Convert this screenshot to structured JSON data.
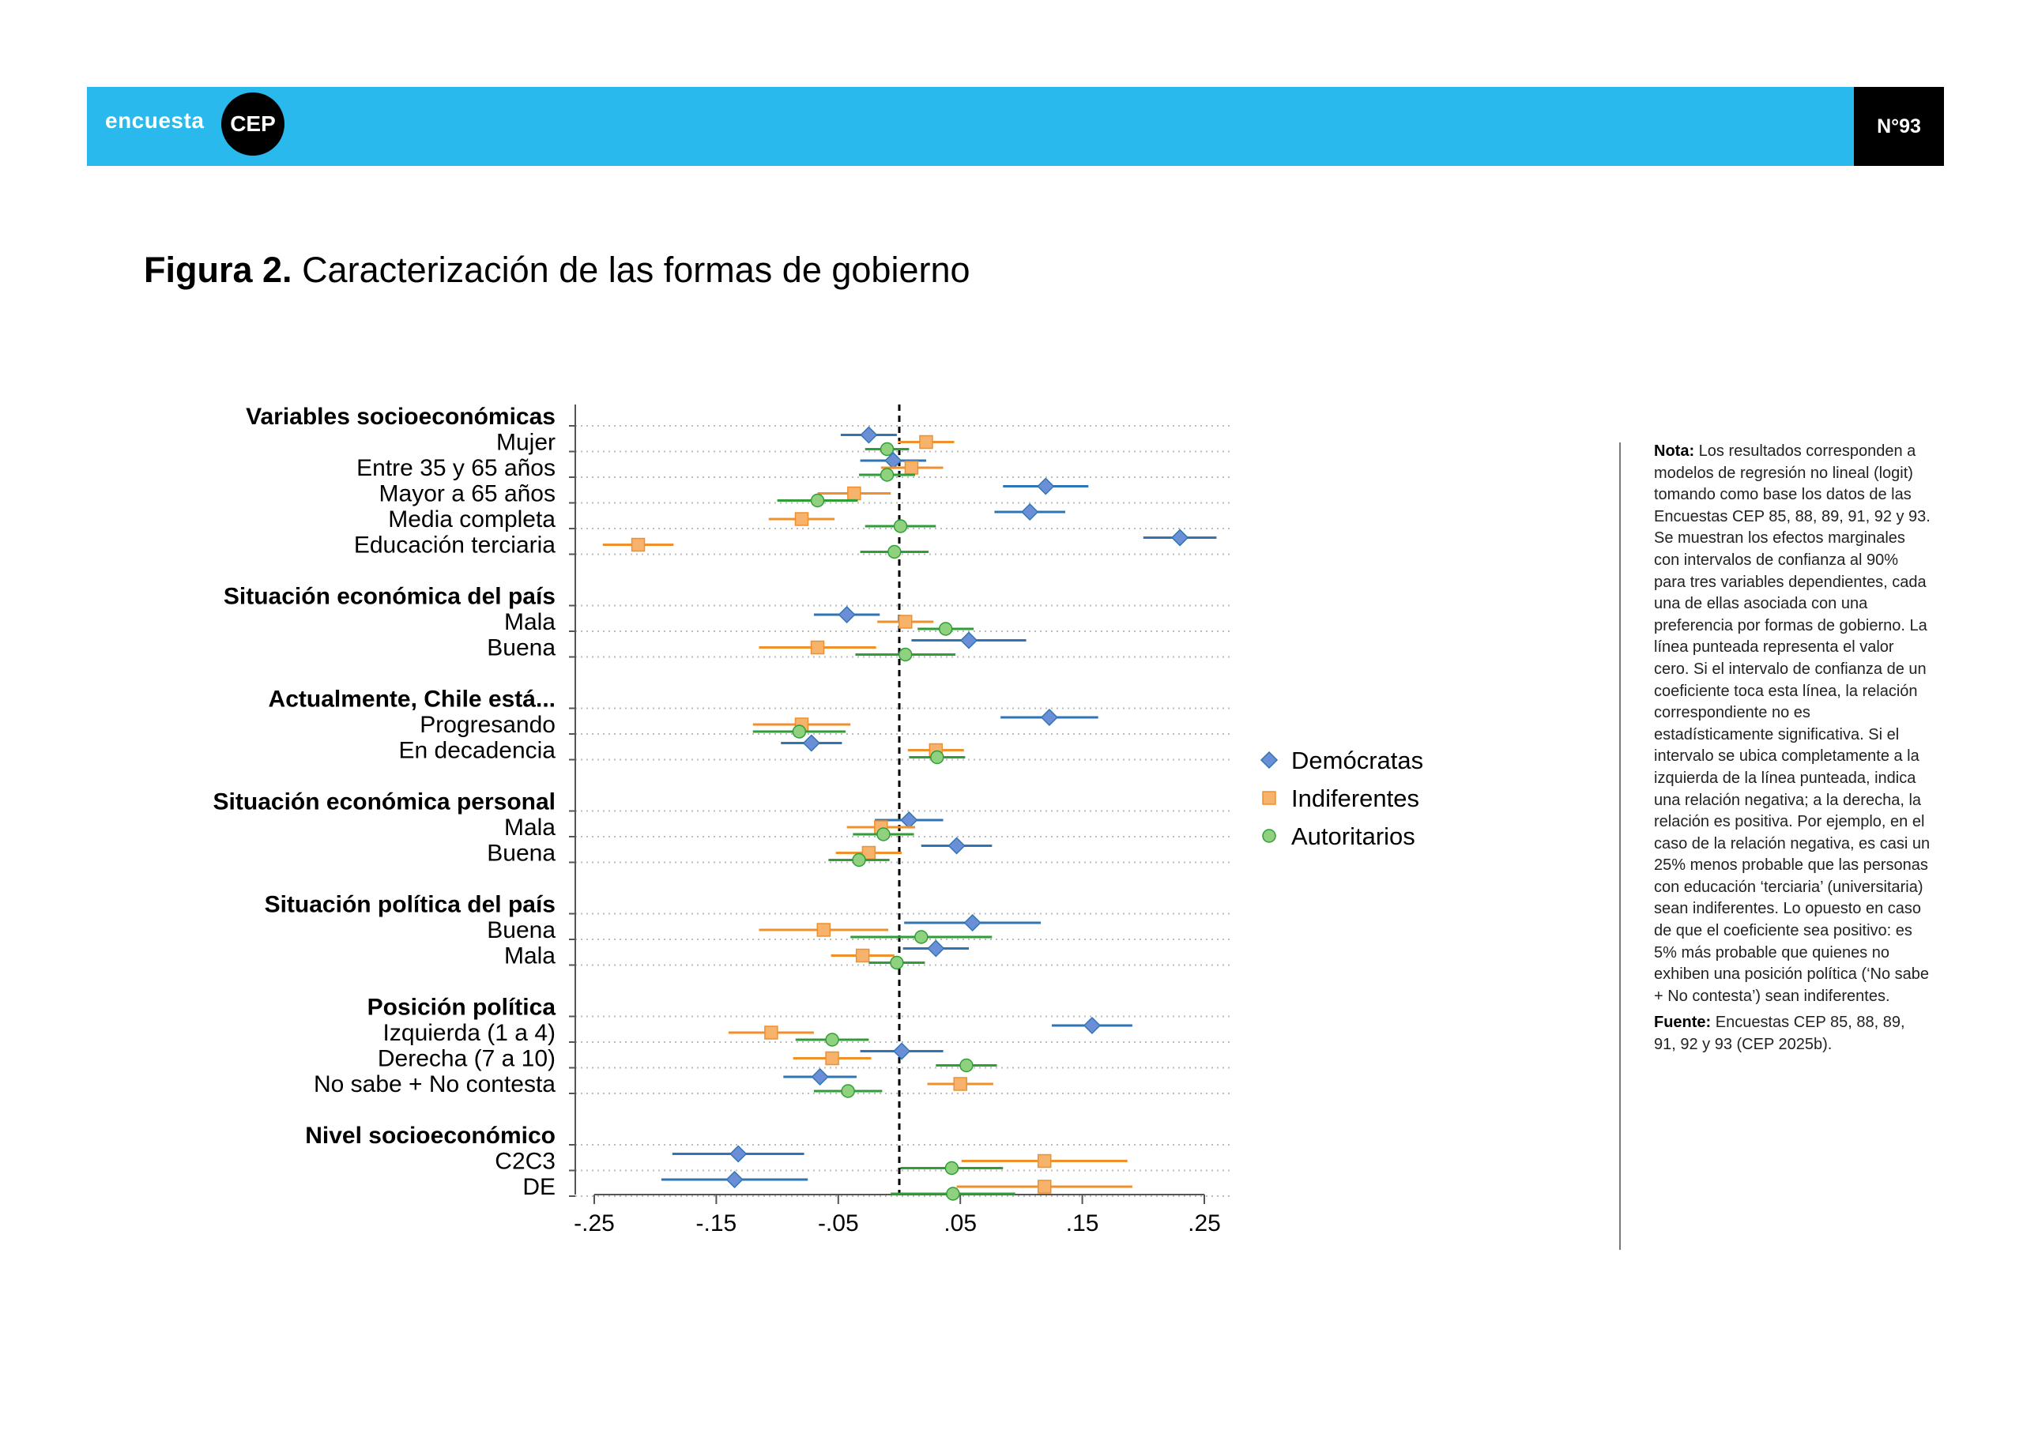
{
  "header": {
    "logo_word": "encuesta",
    "logo_badge": "CEP",
    "issue": "N°93",
    "colors": {
      "band": "#29b9ec",
      "badge": "#000000"
    }
  },
  "figure": {
    "label": "Figura 2.",
    "title": "Caracterización de las formas de gobierno"
  },
  "note": {
    "label": "Nota:",
    "text": "Los resultados corresponden a modelos de regresión no lineal (logit) tomando como base los datos de las Encuestas CEP 85, 88, 89, 91, 92 y 93. Se muestran los efectos marginales con intervalos de confianza al 90% para tres variables dependientes, cada una de ellas asociada con una preferencia por formas de gobierno. La línea punteada representa el valor cero. Si el intervalo de confianza de un coeficiente toca esta línea, la relación correspondiente no es estadísticamente significativa. Si el intervalo se ubica completamente a la izquierda de la línea punteada, indica una relación negativa; a la derecha, la relación es positiva. Por ejemplo, en el caso de la relación negativa, es casi un 25% menos probable que las personas con educación ‘terciaria’ (universitaria) sean indiferentes. Lo opuesto en caso de que el coeficiente sea positivo: es 5% más probable que quienes no exhiben una posición política (‘No sabe + No contesta’) sean indiferentes.",
    "source_label": "Fuente:",
    "source_text": "Encuestas CEP 85, 88, 89, 91, 92 y 93 (CEP 2025b)."
  },
  "chart_data": {
    "type": "scatter",
    "subtype": "coefficient-plot",
    "orientation": "horizontal",
    "xlim": [
      -0.26,
      0.26
    ],
    "x_ticks": [
      -0.25,
      -0.15,
      -0.05,
      0.05,
      0.15,
      0.25
    ],
    "x_tick_labels": [
      "-.25",
      "-.15",
      "-.05",
      ".05",
      ".15",
      ".25"
    ],
    "reference_line": {
      "x": 0,
      "style": "dashed"
    },
    "grid": "dotted horizontal",
    "legend_position": "right",
    "series": [
      {
        "name": "Demócratas",
        "color": "#6b8fd6",
        "line_color": "#2f75b5",
        "marker": "diamond"
      },
      {
        "name": "Indiferentes",
        "color": "#f7b26b",
        "line_color": "#f0902c",
        "marker": "square"
      },
      {
        "name": "Autoritarios",
        "color": "#8fd17f",
        "line_color": "#2f9e37",
        "marker": "circle"
      }
    ],
    "groups": [
      {
        "header": "Variables socioeconómicas",
        "rows": [
          {
            "label": "Mujer",
            "points": [
              [
                -0.025,
                -0.048,
                -0.002
              ],
              [
                0.022,
                -0.001,
                0.045
              ],
              [
                -0.01,
                -0.028,
                0.008
              ]
            ]
          },
          {
            "label": "Entre 35 y 65 años",
            "points": [
              [
                -0.005,
                -0.032,
                0.022
              ],
              [
                0.01,
                -0.015,
                0.036
              ],
              [
                -0.01,
                -0.033,
                0.013
              ]
            ]
          },
          {
            "label": "Mayor a 65 años",
            "points": [
              [
                0.12,
                0.085,
                0.155
              ],
              [
                -0.037,
                -0.067,
                -0.007
              ],
              [
                -0.067,
                -0.1,
                -0.034
              ]
            ]
          },
          {
            "label": "Media completa",
            "points": [
              [
                0.107,
                0.078,
                0.136
              ],
              [
                -0.08,
                -0.107,
                -0.053
              ],
              [
                0.001,
                -0.028,
                0.03
              ]
            ]
          },
          {
            "label": "Educación terciaria",
            "points": [
              [
                0.23,
                0.2,
                0.26
              ],
              [
                -0.214,
                -0.243,
                -0.185
              ],
              [
                -0.004,
                -0.032,
                0.024
              ]
            ]
          }
        ]
      },
      {
        "header": "Situación económica del país",
        "rows": [
          {
            "label": "Mala",
            "points": [
              [
                -0.043,
                -0.07,
                -0.016
              ],
              [
                0.005,
                -0.018,
                0.028
              ],
              [
                0.038,
                0.015,
                0.061
              ]
            ]
          },
          {
            "label": "Buena",
            "points": [
              [
                0.057,
                0.01,
                0.104
              ],
              [
                -0.067,
                -0.115,
                -0.019
              ],
              [
                0.005,
                -0.036,
                0.046
              ]
            ]
          }
        ]
      },
      {
        "header": "Actualmente, Chile está...",
        "rows": [
          {
            "label": "Progresando",
            "points": [
              [
                0.123,
                0.083,
                0.163
              ],
              [
                -0.08,
                -0.12,
                -0.04
              ],
              [
                -0.082,
                -0.12,
                -0.044
              ]
            ]
          },
          {
            "label": "En decadencia",
            "points": [
              [
                -0.072,
                -0.097,
                -0.047
              ],
              [
                0.03,
                0.007,
                0.053
              ],
              [
                0.031,
                0.008,
                0.054
              ]
            ]
          }
        ]
      },
      {
        "header": "Situación económica personal",
        "rows": [
          {
            "label": "Mala",
            "points": [
              [
                0.008,
                -0.02,
                0.036
              ],
              [
                -0.015,
                -0.043,
                0.013
              ],
              [
                -0.013,
                -0.038,
                0.012
              ]
            ]
          },
          {
            "label": "Buena",
            "points": [
              [
                0.047,
                0.018,
                0.076
              ],
              [
                -0.025,
                -0.052,
                0.002
              ],
              [
                -0.033,
                -0.058,
                -0.008
              ]
            ]
          }
        ]
      },
      {
        "header": "Situación política del país",
        "rows": [
          {
            "label": "Buena",
            "points": [
              [
                0.06,
                0.004,
                0.116
              ],
              [
                -0.062,
                -0.115,
                -0.009
              ],
              [
                0.018,
                -0.04,
                0.076
              ]
            ]
          },
          {
            "label": "Mala",
            "points": [
              [
                0.03,
                0.003,
                0.057
              ],
              [
                -0.03,
                -0.056,
                -0.004
              ],
              [
                -0.002,
                -0.025,
                0.021
              ]
            ]
          }
        ]
      },
      {
        "header": "Posición política",
        "rows": [
          {
            "label": "Izquierda (1 a 4)",
            "points": [
              [
                0.158,
                0.125,
                0.191
              ],
              [
                -0.105,
                -0.14,
                -0.07
              ],
              [
                -0.055,
                -0.085,
                -0.025
              ]
            ]
          },
          {
            "label": "Derecha (7 a 10)",
            "points": [
              [
                0.002,
                -0.032,
                0.036
              ],
              [
                -0.055,
                -0.087,
                -0.023
              ],
              [
                0.055,
                0.03,
                0.08
              ]
            ]
          },
          {
            "label": "No sabe + No contesta",
            "points": [
              [
                -0.065,
                -0.095,
                -0.035
              ],
              [
                0.05,
                0.023,
                0.077
              ],
              [
                -0.042,
                -0.07,
                -0.014
              ]
            ]
          }
        ]
      },
      {
        "header": "Nivel socioeconómico",
        "rows": [
          {
            "label": "C2C3",
            "points": [
              [
                -0.132,
                -0.186,
                -0.078
              ],
              [
                0.119,
                0.051,
                0.187
              ],
              [
                0.043,
                0.001,
                0.085
              ]
            ]
          },
          {
            "label": "DE",
            "points": [
              [
                -0.135,
                -0.195,
                -0.075
              ],
              [
                0.119,
                0.047,
                0.191
              ],
              [
                0.044,
                -0.007,
                0.095
              ]
            ]
          }
        ]
      }
    ]
  }
}
